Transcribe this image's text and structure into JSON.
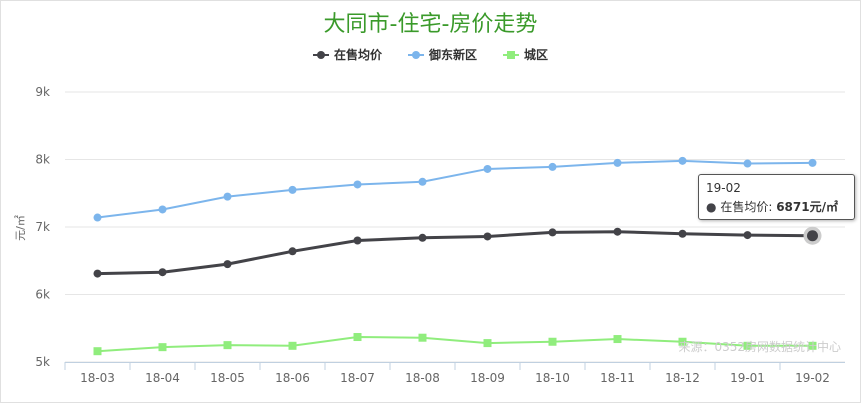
{
  "chart_data": {
    "type": "line",
    "title": "大同市-住宅-房价走势",
    "ylabel": "元/㎡",
    "categories": [
      "18-03",
      "18-04",
      "18-05",
      "18-06",
      "18-07",
      "18-08",
      "18-09",
      "18-10",
      "18-11",
      "18-12",
      "19-01",
      "19-02"
    ],
    "yticks": [
      "5k",
      "6k",
      "7k",
      "8k",
      "9k"
    ],
    "ylim": [
      5000,
      9000
    ],
    "grid": true,
    "legend": "top",
    "series": [
      {
        "name": "在售均价",
        "color": "#434348",
        "marker": "circle",
        "values": [
          6310,
          6330,
          6450,
          6640,
          6800,
          6840,
          6860,
          6920,
          6930,
          6900,
          6880,
          6871
        ]
      },
      {
        "name": "御东新区",
        "color": "#7cb5ec",
        "marker": "circle",
        "values": [
          7140,
          7260,
          7450,
          7550,
          7630,
          7670,
          7860,
          7890,
          7950,
          7980,
          7940,
          7950
        ]
      },
      {
        "name": "城区",
        "color": "#90ed7d",
        "marker": "square",
        "values": [
          5160,
          5220,
          5250,
          5240,
          5370,
          5360,
          5280,
          5300,
          5340,
          5300,
          5240,
          5240
        ]
      }
    ],
    "tooltip": {
      "date": "19-02",
      "label": "在售均价:",
      "value": "6871",
      "unit": "元/㎡"
    }
  },
  "watermark": "来源：0352房网数据统计中心",
  "logo_text": "0352房网"
}
